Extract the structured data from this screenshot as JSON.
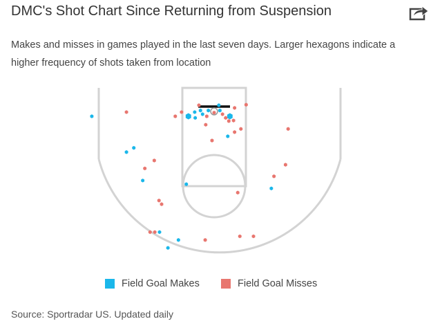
{
  "chart_data": {
    "type": "scatter",
    "title": "DMC's Shot Chart Since Returning from Suspension",
    "subtitle": "Makes and misses in games played in the last seven days. Larger hexagons indicate a higher frequency of shots taken from location",
    "source": "Source: Sportradar US. Updated daily",
    "xlim": [
      -25,
      25
    ],
    "ylim": [
      0,
      33
    ],
    "series": [
      {
        "name": "Field Goal Makes",
        "color": "#1ab7ea",
        "x": [
          -23.3,
          -16.7,
          -15.3,
          -13.6,
          -5.3,
          -10.4,
          -6.8,
          -8.8,
          10.9,
          2.6,
          -4.9,
          -3.6,
          -3.7,
          -2.6,
          -2.2,
          -1.1,
          0.9,
          1.1,
          3.0
        ],
        "y": [
          5.4,
          12.2,
          11.4,
          17.6,
          18.3,
          27.4,
          28.9,
          30.4,
          19.1,
          9.2,
          5.4,
          5.7,
          4.6,
          4.3,
          5.0,
          4.3,
          3.3,
          4.3,
          5.4
        ],
        "size": [
          1,
          1,
          1,
          1,
          1,
          1,
          1,
          1,
          1,
          1,
          2,
          1,
          1,
          1,
          1,
          1,
          1,
          1,
          2
        ]
      },
      {
        "name": "Field Goal Misses",
        "color": "#e8766f",
        "x": [
          -16.7,
          -7.4,
          -6.2,
          -2.9,
          -1.4,
          -1.6,
          0,
          1.6,
          2.2,
          2.8,
          3.7,
          3.9,
          6.1,
          3.9,
          5.1,
          -0.4,
          14.1,
          -11.4,
          -13.2,
          -10.5,
          -10.0,
          -12.2,
          -11.3,
          -1.7,
          4.9,
          7.5,
          4.5,
          11.4,
          13.6
        ],
        "y": [
          4.6,
          5.4,
          4.6,
          3.3,
          5.4,
          7.0,
          4.7,
          5.0,
          5.7,
          6.3,
          6.2,
          3.8,
          3.2,
          8.4,
          7.8,
          10.0,
          7.8,
          13.8,
          15.3,
          21.4,
          22.1,
          27.4,
          27.4,
          28.9,
          28.2,
          28.2,
          19.9,
          16.8,
          14.6
        ],
        "size": [
          1,
          1,
          1,
          1,
          1,
          1,
          1,
          1,
          1,
          1,
          1,
          1,
          1,
          1,
          1,
          1,
          1,
          1,
          1,
          1,
          1,
          1,
          1,
          1,
          1,
          1,
          1,
          1,
          1
        ]
      }
    ]
  }
}
